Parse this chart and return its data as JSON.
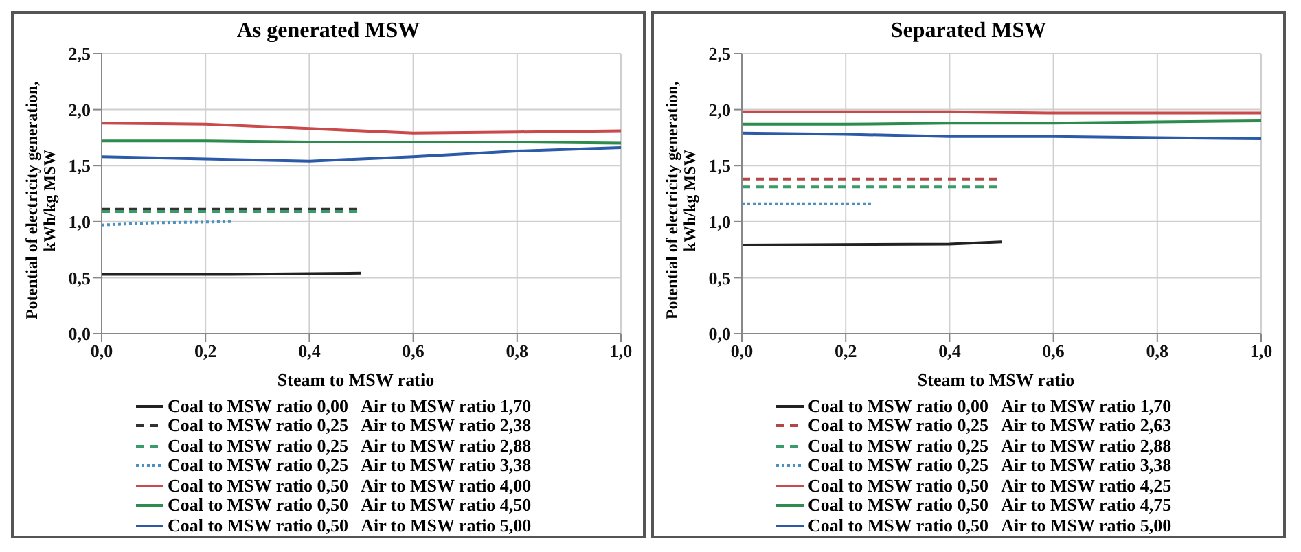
{
  "chart_data": [
    {
      "type": "line",
      "title": "As generated MSW",
      "xlabel": "Steam to MSW ratio",
      "ylabel": "Potential of electricity generation, kWh/kg MSW",
      "xlim": [
        0,
        1
      ],
      "xticks": [
        {
          "value": 0,
          "label": "0,0"
        },
        {
          "value": 0.2,
          "label": "0,2"
        },
        {
          "value": 0.4,
          "label": "0,4"
        },
        {
          "value": 0.6,
          "label": "0,6"
        },
        {
          "value": 0.8,
          "label": "0,8"
        },
        {
          "value": 1,
          "label": "1,0"
        }
      ],
      "ylim": [
        0,
        2.5
      ],
      "yticks": [
        {
          "value": 0,
          "label": "0,0"
        },
        {
          "value": 0.5,
          "label": "0,5"
        },
        {
          "value": 1,
          "label": "1,0"
        },
        {
          "value": 1.5,
          "label": "1,5"
        },
        {
          "value": 2,
          "label": "2,0"
        },
        {
          "value": 2.5,
          "label": "2,5"
        }
      ],
      "grid": true,
      "legend": "bottom",
      "series": [
        {
          "name": "Coal to MSW ratio 0,00   Air to MSW ratio 1,70",
          "color": "#222222",
          "line_style": "solid",
          "x": [
            0,
            0.25,
            0.5
          ],
          "values": [
            0.53,
            0.53,
            0.54
          ]
        },
        {
          "name": "Coal to MSW ratio 0,25   Air to MSW ratio 2,38",
          "color": "#333333",
          "line_style": "dashed",
          "x": [
            0,
            0.25,
            0.5
          ],
          "values": [
            1.11,
            1.11,
            1.11
          ]
        },
        {
          "name": "Coal to MSW ratio 0,25   Air to MSW ratio 2,88",
          "color": "#3a9a6a",
          "line_style": "dashed",
          "x": [
            0,
            0.25,
            0.5
          ],
          "values": [
            1.09,
            1.09,
            1.09
          ]
        },
        {
          "name": "Coal to MSW ratio 0,25   Air to MSW ratio 3,38",
          "color": "#4a90c0",
          "line_style": "dotted",
          "x": [
            0,
            0.1,
            0.25
          ],
          "values": [
            0.97,
            0.99,
            1.0
          ]
        },
        {
          "name": "Coal to MSW ratio 0,50   Air to MSW ratio 4,00",
          "color": "#c84a4a",
          "line_style": "solid",
          "x": [
            0,
            0.2,
            0.4,
            0.6,
            0.8,
            1
          ],
          "values": [
            1.88,
            1.87,
            1.83,
            1.79,
            1.8,
            1.81
          ]
        },
        {
          "name": "Coal to MSW ratio 0,50   Air to MSW ratio 4,50",
          "color": "#2e8b4e",
          "line_style": "solid",
          "x": [
            0,
            0.2,
            0.4,
            0.6,
            0.8,
            1
          ],
          "values": [
            1.72,
            1.72,
            1.71,
            1.71,
            1.71,
            1.7
          ]
        },
        {
          "name": "Coal to MSW ratio 0,50   Air to MSW ratio 5,00",
          "color": "#2a5aa8",
          "line_style": "solid",
          "x": [
            0,
            0.2,
            0.4,
            0.6,
            0.8,
            1
          ],
          "values": [
            1.58,
            1.56,
            1.54,
            1.58,
            1.63,
            1.66
          ]
        }
      ]
    },
    {
      "type": "line",
      "title": "Separated MSW",
      "xlabel": "Steam to MSW ratio",
      "ylabel": "Potential of electricity generation, kWh/kg MSW",
      "xlim": [
        0,
        1
      ],
      "xticks": [
        {
          "value": 0,
          "label": "0,0"
        },
        {
          "value": 0.2,
          "label": "0,2"
        },
        {
          "value": 0.4,
          "label": "0,4"
        },
        {
          "value": 0.6,
          "label": "0,6"
        },
        {
          "value": 0.8,
          "label": "0,8"
        },
        {
          "value": 1,
          "label": "1,0"
        }
      ],
      "ylim": [
        0,
        2.5
      ],
      "yticks": [
        {
          "value": 0,
          "label": "0,0"
        },
        {
          "value": 0.5,
          "label": "0,5"
        },
        {
          "value": 1,
          "label": "1,0"
        },
        {
          "value": 1.5,
          "label": "1,5"
        },
        {
          "value": 2,
          "label": "2,0"
        },
        {
          "value": 2.5,
          "label": "2,5"
        }
      ],
      "grid": true,
      "legend": "bottom",
      "series": [
        {
          "name": "Coal to MSW ratio 0,00   Air to MSW ratio 1,70",
          "color": "#222222",
          "line_style": "solid",
          "x": [
            0,
            0.4,
            0.5
          ],
          "values": [
            0.79,
            0.8,
            0.82
          ]
        },
        {
          "name": "Coal to MSW ratio 0,25   Air to MSW ratio 2,63",
          "color": "#b04848",
          "line_style": "dashed",
          "x": [
            0,
            0.25,
            0.5
          ],
          "values": [
            1.38,
            1.38,
            1.38
          ]
        },
        {
          "name": "Coal to MSW ratio 0,25   Air to MSW ratio 2,88",
          "color": "#3a9a6a",
          "line_style": "dashed",
          "x": [
            0,
            0.25,
            0.5
          ],
          "values": [
            1.31,
            1.31,
            1.31
          ]
        },
        {
          "name": "Coal to MSW ratio 0,25   Air to MSW ratio 3,38",
          "color": "#4a90c0",
          "line_style": "dotted",
          "x": [
            0,
            0.1,
            0.25
          ],
          "values": [
            1.16,
            1.16,
            1.16
          ]
        },
        {
          "name": "Coal to MSW ratio 0,50   Air to MSW ratio 4,25",
          "color": "#c84a4a",
          "line_style": "solid",
          "x": [
            0,
            0.2,
            0.4,
            0.6,
            0.8,
            1
          ],
          "values": [
            1.98,
            1.98,
            1.98,
            1.97,
            1.97,
            1.97
          ]
        },
        {
          "name": "Coal to MSW ratio 0,50   Air to MSW ratio 4,75",
          "color": "#2e8b4e",
          "line_style": "solid",
          "x": [
            0,
            0.2,
            0.4,
            0.6,
            0.8,
            1
          ],
          "values": [
            1.87,
            1.87,
            1.88,
            1.88,
            1.89,
            1.9
          ]
        },
        {
          "name": "Coal to MSW ratio 0,50   Air to MSW ratio 5,00",
          "color": "#2a5aa8",
          "line_style": "solid",
          "x": [
            0,
            0.2,
            0.4,
            0.6,
            0.8,
            1
          ],
          "values": [
            1.79,
            1.78,
            1.76,
            1.76,
            1.75,
            1.74
          ]
        }
      ]
    }
  ]
}
